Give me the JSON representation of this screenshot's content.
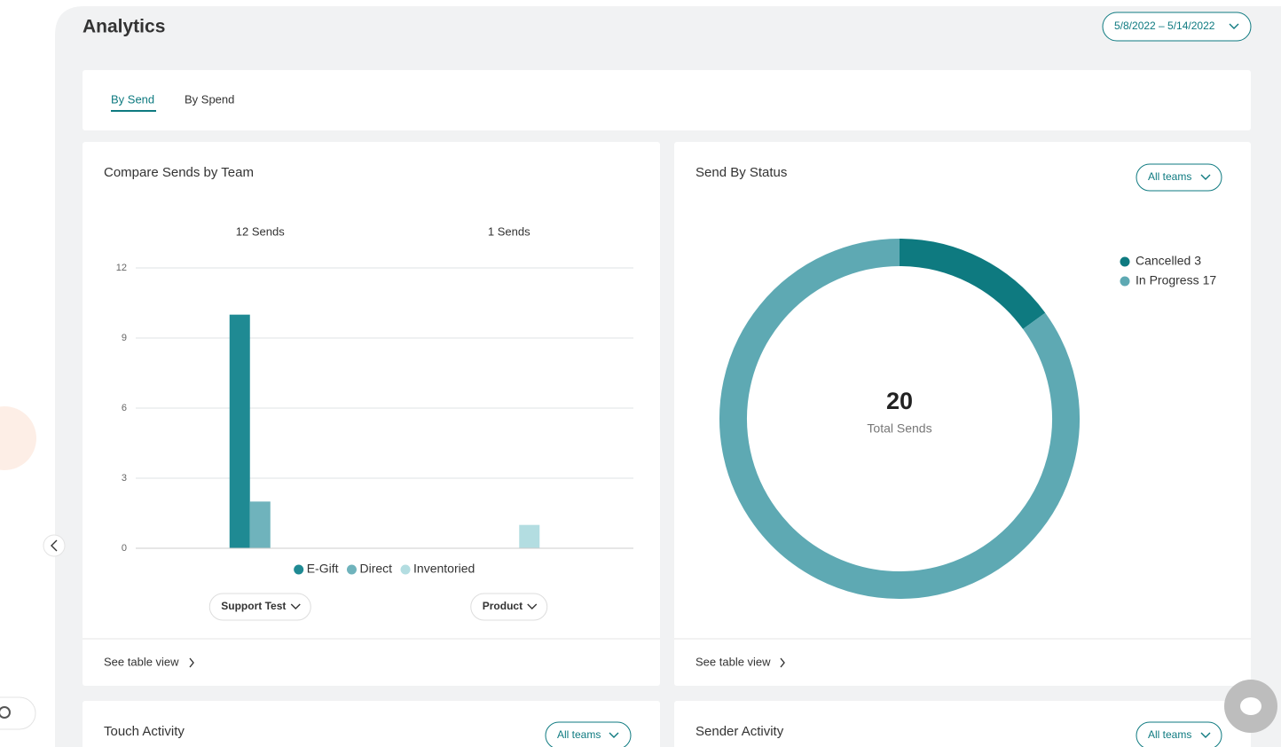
{
  "header": {
    "title": "Analytics",
    "date_range": "5/8/2022 – 5/14/2022"
  },
  "tabs": [
    "By Send",
    "By Spend"
  ],
  "chart_data": [
    {
      "type": "bar",
      "title": "Compare Sends by Team",
      "group_labels": [
        "12 Sends",
        "1 Sends"
      ],
      "categories": [
        "Support Test",
        "Product"
      ],
      "series": [
        {
          "name": "E-Gift",
          "color": "#1f8a93",
          "values": [
            10,
            0
          ]
        },
        {
          "name": "Direct",
          "color": "#6fb3bc",
          "values": [
            2,
            0
          ]
        },
        {
          "name": "Inventoried",
          "color": "#b3dde1",
          "values": [
            0,
            1
          ]
        }
      ],
      "ylim": [
        0,
        12
      ],
      "yticks": [
        0,
        3,
        6,
        9,
        12
      ],
      "grid": true,
      "link": "See table view"
    },
    {
      "type": "pie",
      "title": "Send By Status",
      "filter": "All teams",
      "categories": [
        "Cancelled",
        "In Progress"
      ],
      "values": [
        3,
        17
      ],
      "colors": [
        "#0e7a80",
        "#5ea9b3"
      ],
      "center_value": 20,
      "center_label": "Total Sends",
      "link": "See table view"
    }
  ],
  "panels": [
    {
      "title": "Touch Activity",
      "filter": "All teams"
    },
    {
      "title": "Sender Activity",
      "filter": "All teams"
    }
  ]
}
